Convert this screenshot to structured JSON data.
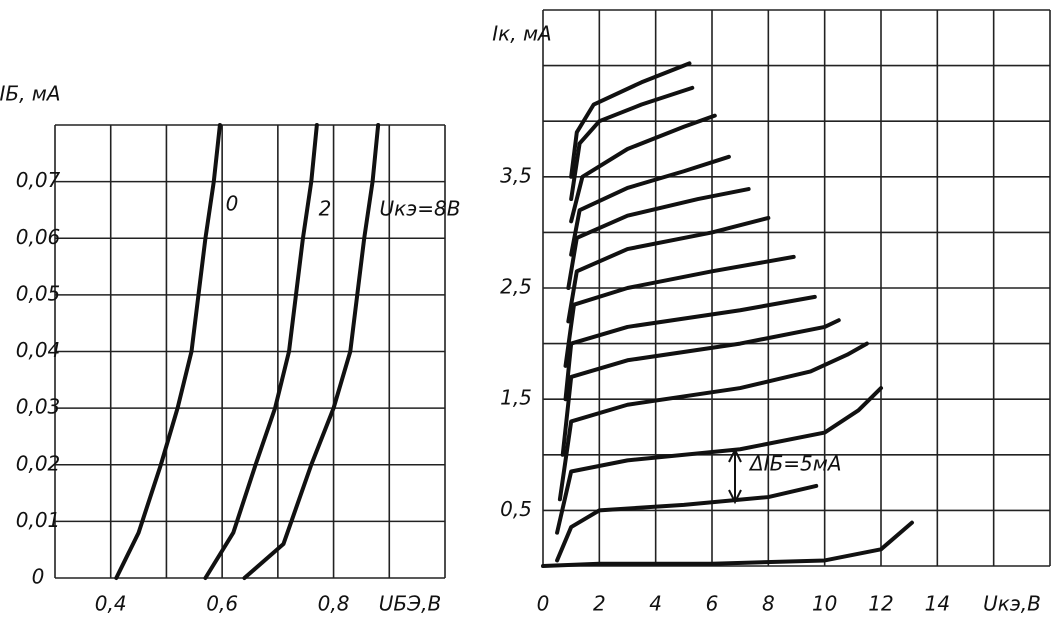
{
  "chart_data": [
    {
      "type": "line",
      "ylabel": "IБ, мА",
      "xlabel": "UБЭ,В",
      "xlim": [
        0.3,
        1.0
      ],
      "ylim": [
        0,
        0.08
      ],
      "xticks": [
        {
          "value": 0.4,
          "label": "0,4"
        },
        {
          "value": 0.6,
          "label": "0,6"
        },
        {
          "value": 0.8,
          "label": "0,8"
        }
      ],
      "yticks": [
        0,
        {
          "value": 0.01,
          "label": "0,01"
        },
        {
          "value": 0.02,
          "label": "0,02"
        },
        {
          "value": 0.03,
          "label": "0,03"
        },
        {
          "value": 0.04,
          "label": "0,04"
        },
        {
          "value": 0.05,
          "label": "0,05"
        },
        {
          "value": 0.06,
          "label": "0,06"
        },
        {
          "value": 0.07,
          "label": "0,07"
        }
      ],
      "xgrid": [
        0.3,
        0.4,
        0.5,
        0.6,
        0.7,
        0.8,
        0.9,
        1.0
      ],
      "ygrid": [
        0,
        0.01,
        0.02,
        0.03,
        0.04,
        0.05,
        0.06,
        0.07,
        0.08
      ],
      "color": "#111111",
      "series": [
        {
          "name": "0",
          "x": [
            0.41,
            0.45,
            0.49,
            0.52,
            0.545,
            0.57,
            0.585,
            0.596
          ],
          "values": [
            0,
            0.008,
            0.02,
            0.03,
            0.04,
            0.06,
            0.07,
            0.08
          ]
        },
        {
          "name": "2",
          "x": [
            0.57,
            0.62,
            0.66,
            0.695,
            0.72,
            0.745,
            0.76,
            0.77
          ],
          "values": [
            0,
            0.008,
            0.02,
            0.03,
            0.04,
            0.06,
            0.07,
            0.08
          ]
        },
        {
          "name": "Uкэ=8В",
          "x": [
            0.64,
            0.71,
            0.76,
            0.8,
            0.83,
            0.855,
            0.87,
            0.88
          ],
          "values": [
            0,
            0.006,
            0.02,
            0.03,
            0.04,
            0.06,
            0.07,
            0.08
          ]
        }
      ]
    },
    {
      "type": "line",
      "ylabel": "Iк, мА",
      "xlabel": "Uкэ,В",
      "annotation": "ΔIБ=5мА",
      "xlim": [
        0,
        18
      ],
      "ylim": [
        0,
        5
      ],
      "xticks": [
        0,
        2,
        4,
        6,
        8,
        10,
        12,
        14
      ],
      "yticks": [
        {
          "value": 0.5,
          "label": "0,5"
        },
        {
          "value": 1.5,
          "label": "1,5"
        },
        {
          "value": 2.5,
          "label": "2,5"
        },
        {
          "value": 3.5,
          "label": "3,5"
        }
      ],
      "xgrid": [
        0,
        2,
        4,
        6,
        8,
        10,
        12,
        14,
        16,
        18
      ],
      "ygrid": [
        0,
        0.5,
        1,
        1.5,
        2,
        2.5,
        3,
        3.5,
        4,
        4.5,
        5
      ],
      "color": "#111111",
      "series": [
        {
          "x": [
            0,
            2,
            6,
            10,
            12,
            13.1
          ],
          "values": [
            0,
            0.02,
            0.02,
            0.05,
            0.15,
            0.39
          ]
        },
        {
          "x": [
            0.5,
            1,
            2,
            5,
            8,
            9.7
          ],
          "values": [
            0.05,
            0.35,
            0.5,
            0.55,
            0.62,
            0.72
          ]
        },
        {
          "x": [
            0.5,
            1,
            3,
            7,
            10,
            11.2,
            12
          ],
          "values": [
            0.3,
            0.85,
            0.95,
            1.05,
            1.2,
            1.4,
            1.6
          ]
        },
        {
          "x": [
            0.6,
            1,
            3,
            7,
            9.5,
            10.8,
            11.5
          ],
          "values": [
            0.6,
            1.3,
            1.45,
            1.6,
            1.75,
            1.9,
            2.0
          ]
        },
        {
          "x": [
            0.7,
            1,
            3,
            7,
            10,
            10.5
          ],
          "values": [
            1.0,
            1.7,
            1.85,
            2.0,
            2.15,
            2.21
          ]
        },
        {
          "x": [
            0.8,
            1,
            3,
            7,
            9.65
          ],
          "values": [
            1.5,
            2.0,
            2.15,
            2.3,
            2.42
          ]
        },
        {
          "x": [
            0.8,
            1.1,
            3,
            6,
            8.9
          ],
          "values": [
            1.8,
            2.35,
            2.5,
            2.65,
            2.78
          ]
        },
        {
          "x": [
            0.9,
            1.2,
            3,
            6,
            8
          ],
          "values": [
            2.2,
            2.65,
            2.85,
            3.0,
            3.13
          ]
        },
        {
          "x": [
            0.9,
            1.2,
            3,
            5.5,
            7.3
          ],
          "values": [
            2.5,
            2.95,
            3.15,
            3.3,
            3.39
          ]
        },
        {
          "x": [
            1.0,
            1.3,
            3,
            5,
            6.6
          ],
          "values": [
            2.8,
            3.2,
            3.4,
            3.55,
            3.68
          ]
        },
        {
          "x": [
            1.0,
            1.4,
            3,
            5,
            6.1
          ],
          "values": [
            3.1,
            3.5,
            3.75,
            3.95,
            4.05
          ]
        },
        {
          "x": [
            1.0,
            1.3,
            2,
            3.5,
            5.3
          ],
          "values": [
            3.3,
            3.8,
            4.0,
            4.15,
            4.3
          ]
        },
        {
          "x": [
            1.0,
            1.2,
            1.8,
            3.5,
            5.2
          ],
          "values": [
            3.5,
            3.9,
            4.15,
            4.35,
            4.52
          ]
        }
      ]
    }
  ]
}
